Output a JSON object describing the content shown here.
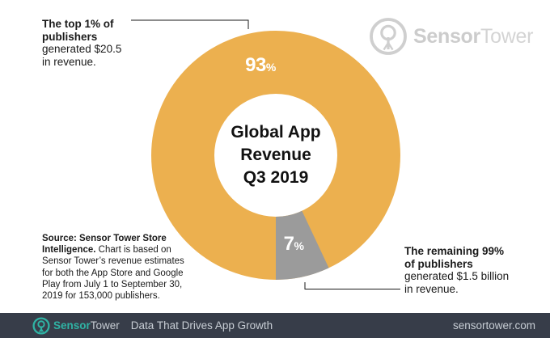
{
  "brand": {
    "name_bold": "Sensor",
    "name_light": "Tower",
    "tagline": "Data That Drives App Growth",
    "website": "sensortower.com",
    "teal": "#2fb3a4",
    "watermark_gray": "#cfcfcf",
    "footer_bg": "#373d49"
  },
  "chart_data": {
    "type": "pie",
    "donut": true,
    "title": "Global App Revenue Q3 2019",
    "center_lines": [
      "Global App",
      "Revenue",
      "Q3 2019"
    ],
    "legend": "none",
    "slices": [
      {
        "name": "Top 1% of publishers",
        "value": 93,
        "label_value": "93",
        "label_suffix": "%",
        "color": "#ecb04f"
      },
      {
        "name": "Remaining 99% of publishers",
        "value": 7,
        "label_value": "7",
        "label_suffix": "%",
        "color": "#9b9b9b"
      }
    ]
  },
  "annotations": {
    "top_left": {
      "lines": [
        "The top 1% of",
        "publishers",
        "generated $20.5",
        "in revenue."
      ]
    },
    "bottom_right": {
      "lines": [
        "The remaining 99%",
        "of publishers",
        "generated $1.5 billion",
        "in revenue."
      ]
    }
  },
  "source": {
    "line1_bold": "Source: Sensor Tower Store",
    "line2_bold": "Intelligence.",
    "line2_rest": "Chart is based on",
    "lines_rest": [
      "Sensor Tower’s revenue estimates",
      "for both the App Store and Google",
      "Play from July 1 to September 30,",
      "2019 for 153,000 publishers."
    ]
  }
}
